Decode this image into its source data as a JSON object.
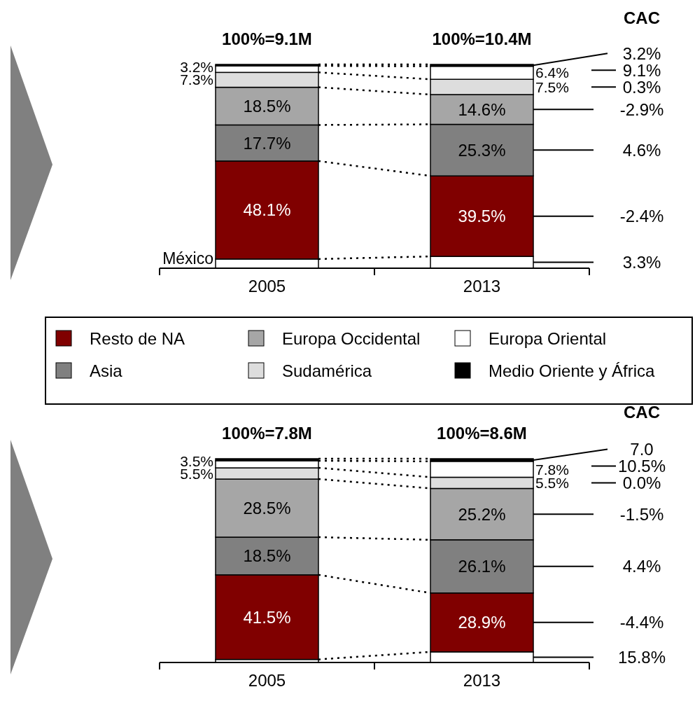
{
  "chart_data": [
    {
      "type": "bar",
      "stacked": true,
      "categories": [
        "2005",
        "2013"
      ],
      "totals": [
        "100%=9.1M",
        "100%=10.4M"
      ],
      "legend": "bottom",
      "series": [
        {
          "color": "#ffffff",
          "values": [
            4.5,
            5.8
          ],
          "value_labels": [
            null,
            null
          ]
        },
        {
          "name": "Resto de NA",
          "color": "#800000",
          "values": [
            48.1,
            39.5
          ],
          "value_labels": [
            "48.1%",
            "39.5%"
          ]
        },
        {
          "name": "Asia",
          "color": "#808080",
          "values": [
            17.7,
            25.3
          ],
          "value_labels": [
            "17.7%",
            "25.3%"
          ]
        },
        {
          "name": "Europa Occidental",
          "color": "#a6a6a6",
          "values": [
            18.5,
            14.6
          ],
          "value_labels": [
            "18.5%",
            "14.6%"
          ]
        },
        {
          "name": "Sudamérica",
          "color": "#dddddd",
          "values": [
            7.3,
            7.5
          ],
          "value_labels": [
            null,
            null
          ]
        },
        {
          "name": "Europa Oriental",
          "color": "#ffffff",
          "values": [
            3.2,
            6.4
          ],
          "value_labels": [
            null,
            null
          ]
        },
        {
          "name": "Medio Oriente y África",
          "color": "#000000",
          "values": [
            0.7,
            0.9
          ],
          "value_labels": [
            null,
            null
          ]
        }
      ],
      "annotations": [
        "CAC",
        "3.3%",
        "-2.4%",
        "4.6%",
        "-2.9%",
        "0.3%",
        "9.1%",
        "3.2%",
        "3.2%",
        "7.3%",
        "6.4%",
        "7.5%",
        "México"
      ]
    },
    {
      "type": "bar",
      "stacked": true,
      "categories": [
        "2005",
        "2013"
      ],
      "totals": [
        "100%=7.8M",
        "100%=8.6M"
      ],
      "series": [
        {
          "color": "#ffffff",
          "values": [
            1.5,
            5.2
          ],
          "value_labels": [
            null,
            null
          ]
        },
        {
          "color": "#800000",
          "values": [
            41.5,
            28.9
          ],
          "value_labels": [
            "41.5%",
            "28.9%"
          ]
        },
        {
          "color": "#808080",
          "values": [
            18.5,
            26.1
          ],
          "value_labels": [
            "18.5%",
            "26.1%"
          ]
        },
        {
          "color": "#a6a6a6",
          "values": [
            28.5,
            25.2
          ],
          "value_labels": [
            "28.5%",
            "25.2%"
          ]
        },
        {
          "color": "#dddddd",
          "values": [
            5.5,
            5.5
          ],
          "value_labels": [
            null,
            null
          ]
        },
        {
          "color": "#ffffff",
          "values": [
            3.5,
            7.8
          ],
          "value_labels": [
            null,
            null
          ]
        },
        {
          "color": "#000000",
          "values": [
            1.0,
            1.3
          ],
          "value_labels": [
            null,
            null
          ]
        }
      ],
      "annotations": [
        "CAC",
        "15.8%",
        "-4.4%",
        "4.4%",
        "-1.5%",
        "0.0%",
        "10.5%",
        "7.0",
        "3.5%",
        "5.5%",
        "7.8%",
        "5.5%"
      ]
    }
  ]
}
